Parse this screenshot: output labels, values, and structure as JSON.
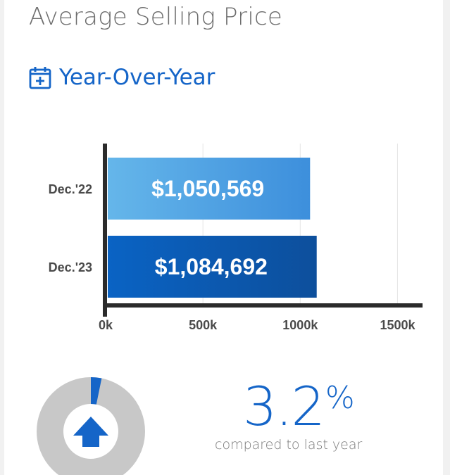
{
  "header": {
    "title": "Average Selling Price",
    "subtitle": "Year-Over-Year",
    "subtitle_icon": "calendar-plus-icon"
  },
  "chart_data": {
    "type": "bar",
    "orientation": "horizontal",
    "categories": [
      "Dec.'22",
      "Dec.'23"
    ],
    "values": [
      1050569,
      1084692
    ],
    "value_labels": [
      "$1,050,569",
      "$1,084,692"
    ],
    "x_ticks": [
      "0k",
      "500k",
      "1000k",
      "1500k"
    ],
    "x_tick_values": [
      0,
      500000,
      1000000,
      1500000
    ],
    "xlim": [
      0,
      1520000
    ],
    "grid": true,
    "colors": [
      [
        "#65b6ea",
        "#3d8fdc"
      ],
      [
        "#0a63c4",
        "#0d4f9c"
      ]
    ]
  },
  "summary": {
    "change_value": "3.2",
    "change_symbol": "%",
    "change_fraction": 0.032,
    "direction_icon": "arrow-up-icon",
    "caption": "compared to last year"
  },
  "colors": {
    "accent": "#1565c8",
    "donut_track": "#c8c8c8",
    "axis": "#2b2b2b",
    "title": "#6d6d6d"
  }
}
